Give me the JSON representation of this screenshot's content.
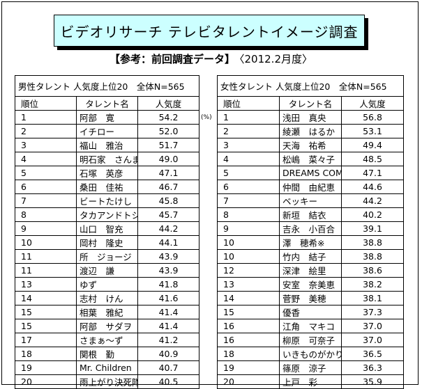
{
  "title": "ビデオリサーチ テレビタレントイメージ調査",
  "subtitle": "【参考：前回調査データ】",
  "period": "〈2012.2月度〉",
  "unit": "(%)",
  "columns": {
    "rank": "順位",
    "name": "タレント名",
    "value": "人気度"
  },
  "male": {
    "header": "男性タレント 人気度上位20　全体N=565",
    "rows": [
      {
        "rank": "1",
        "name": "阿部　寛",
        "value": "54.2"
      },
      {
        "rank": "2",
        "name": "イチロー",
        "value": "52.0"
      },
      {
        "rank": "3",
        "name": "福山　雅治",
        "value": "51.7"
      },
      {
        "rank": "4",
        "name": "明石家　さんま",
        "value": "49.0"
      },
      {
        "rank": "5",
        "name": "石塚　英彦",
        "value": "47.1"
      },
      {
        "rank": "6",
        "name": "桑田　佳祐",
        "value": "46.7"
      },
      {
        "rank": "7",
        "name": "ビートたけし（北野武）",
        "value": "45.8"
      },
      {
        "rank": "8",
        "name": "タカアンドトシ",
        "value": "45.7"
      },
      {
        "rank": "9",
        "name": "山口　智充",
        "value": "44.2"
      },
      {
        "rank": "10",
        "name": "岡村　隆史",
        "value": "44.1"
      },
      {
        "rank": "11",
        "name": "所　ジョージ",
        "value": "43.9"
      },
      {
        "rank": "11",
        "name": "渡辺　謙",
        "value": "43.9"
      },
      {
        "rank": "13",
        "name": "ゆず",
        "value": "41.8"
      },
      {
        "rank": "14",
        "name": "志村　けん",
        "value": "41.6"
      },
      {
        "rank": "15",
        "name": "相葉　雅紀",
        "value": "41.4"
      },
      {
        "rank": "15",
        "name": "阿部　サダヲ",
        "value": "41.4"
      },
      {
        "rank": "17",
        "name": "さまぁ～ず",
        "value": "41.2"
      },
      {
        "rank": "18",
        "name": "関根　勤",
        "value": "40.9"
      },
      {
        "rank": "19",
        "name": "Mr. Children",
        "value": "40.7"
      },
      {
        "rank": "20",
        "name": "雨上がり決死隊",
        "value": "40.5"
      }
    ]
  },
  "female": {
    "header": "女性タレント 人気度上位20　全体N=565",
    "rows": [
      {
        "rank": "1",
        "name": "浅田　真央",
        "value": "56.8"
      },
      {
        "rank": "2",
        "name": "綾瀬　はるか",
        "value": "53.1"
      },
      {
        "rank": "3",
        "name": "天海　祐希",
        "value": "49.4"
      },
      {
        "rank": "4",
        "name": "松嶋　菜々子",
        "value": "48.5"
      },
      {
        "rank": "5",
        "name": "DREAMS COME TRUE",
        "value": "47.1"
      },
      {
        "rank": "6",
        "name": "仲間　由紀恵",
        "value": "44.6"
      },
      {
        "rank": "7",
        "name": "ベッキー",
        "value": "44.2"
      },
      {
        "rank": "8",
        "name": "新垣　結衣",
        "value": "40.2"
      },
      {
        "rank": "9",
        "name": "吉永　小百合",
        "value": "39.1"
      },
      {
        "rank": "10",
        "name": "澤　穂希※",
        "value": "38.8"
      },
      {
        "rank": "10",
        "name": "竹内　結子",
        "value": "38.8"
      },
      {
        "rank": "12",
        "name": "深津　絵里",
        "value": "38.6"
      },
      {
        "rank": "13",
        "name": "安室　奈美恵",
        "value": "38.2"
      },
      {
        "rank": "14",
        "name": "菅野　美穂",
        "value": "38.1"
      },
      {
        "rank": "15",
        "name": "優香",
        "value": "37.3"
      },
      {
        "rank": "16",
        "name": "江角　マキコ",
        "value": "37.0"
      },
      {
        "rank": "16",
        "name": "柳原　可奈子",
        "value": "37.0"
      },
      {
        "rank": "18",
        "name": "いきものがかり",
        "value": "36.5"
      },
      {
        "rank": "19",
        "name": "篠原　涼子",
        "value": "36.3"
      },
      {
        "rank": "20",
        "name": "上戸　彩",
        "value": "35.9"
      }
    ]
  }
}
